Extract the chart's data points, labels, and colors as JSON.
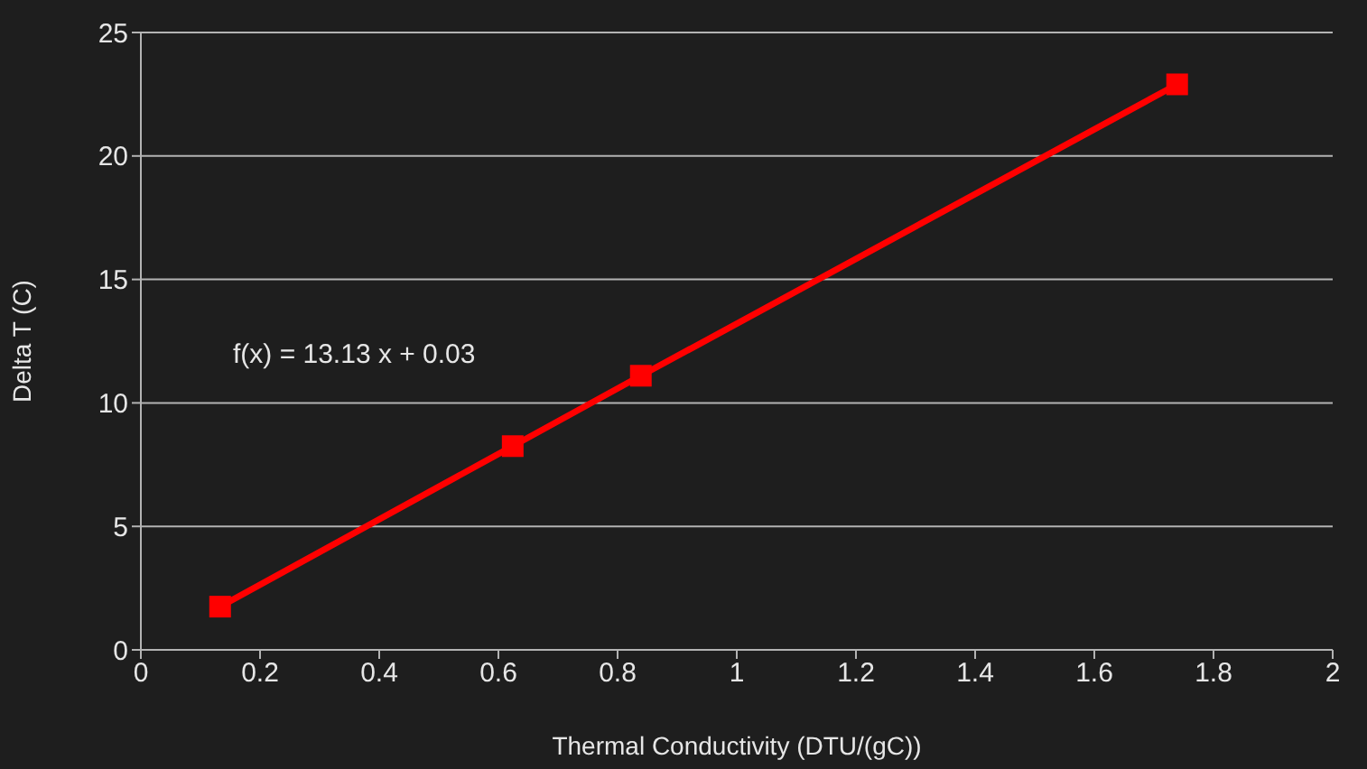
{
  "chart_data": {
    "type": "line",
    "xlabel": "Thermal Conductivity (DTU/(gC))",
    "ylabel": "Delta T (C)",
    "x": [
      0.133,
      0.624,
      0.839,
      1.739
    ],
    "series": [
      {
        "color": "#ff0000",
        "values": [
          1.75,
          8.25,
          11.1,
          22.9
        ]
      }
    ],
    "xlim": [
      0,
      2
    ],
    "xticks": [
      0,
      0.2,
      0.4,
      0.6,
      0.8,
      1,
      1.2,
      1.4,
      1.6,
      1.8,
      2
    ],
    "ylim": [
      0,
      25
    ],
    "yticks": [
      0,
      5,
      10,
      15,
      20,
      25
    ],
    "grid": "y",
    "marker": "square",
    "line_style": "solid",
    "annotations": [
      "f(x) = 13.13 x + 0.03"
    ]
  }
}
